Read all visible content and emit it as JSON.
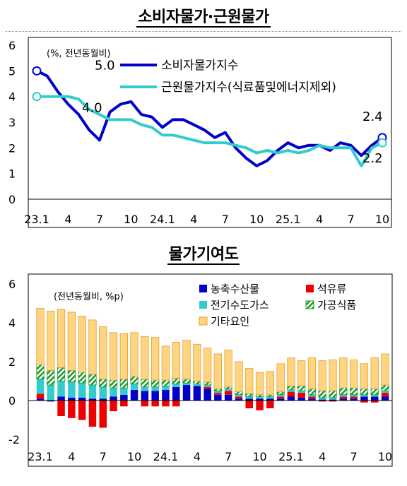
{
  "page": {
    "title1": "소비자물가·근원물가",
    "title2": "물가기여도"
  },
  "chart_data": [
    {
      "type": "line",
      "unit_note": "(%, 전년동월비)",
      "x_tick_labels": [
        "23.1",
        "4",
        "7",
        "10",
        "24.1",
        "4",
        "7",
        "10",
        "25.1",
        "4",
        "7",
        "10"
      ],
      "x": [
        "2023-01",
        "2023-02",
        "2023-03",
        "2023-04",
        "2023-05",
        "2023-06",
        "2023-07",
        "2023-08",
        "2023-09",
        "2023-10",
        "2023-11",
        "2023-12",
        "2024-01",
        "2024-02",
        "2024-03",
        "2024-04",
        "2024-05",
        "2024-06",
        "2024-07",
        "2024-08",
        "2024-09",
        "2024-10",
        "2024-11",
        "2024-12",
        "2025-01",
        "2025-02",
        "2025-03",
        "2025-04",
        "2025-05",
        "2025-06",
        "2025-07",
        "2025-08",
        "2025-09",
        "2025-10"
      ],
      "ylim": [
        0,
        6
      ],
      "y_ticks": [
        0,
        1,
        2,
        3,
        4,
        5,
        6
      ],
      "grid": false,
      "legend_position": "top-right",
      "series": [
        {
          "name": "소비자물가지수",
          "color": "#0000CC",
          "values": [
            5.0,
            4.8,
            4.2,
            3.7,
            3.3,
            2.7,
            2.3,
            3.4,
            3.7,
            3.8,
            3.3,
            3.2,
            2.8,
            3.1,
            3.1,
            2.9,
            2.7,
            2.4,
            2.6,
            2.0,
            1.6,
            1.3,
            1.5,
            1.9,
            2.2,
            2.0,
            2.1,
            2.1,
            1.9,
            2.2,
            2.1,
            1.7,
            2.1,
            2.4
          ]
        },
        {
          "name": "근원물가지수(식료품및에너지제외)",
          "color": "#33CCCC",
          "values": [
            4.0,
            4.0,
            4.0,
            4.0,
            3.9,
            3.5,
            3.3,
            3.1,
            3.1,
            3.1,
            2.9,
            2.8,
            2.5,
            2.5,
            2.4,
            2.3,
            2.2,
            2.2,
            2.2,
            2.1,
            2.0,
            1.8,
            1.9,
            1.8,
            1.9,
            1.8,
            1.9,
            2.1,
            2.0,
            2.0,
            2.0,
            1.3,
            2.0,
            2.2
          ]
        }
      ],
      "annotations": [
        {
          "text": "5.0",
          "series": 0,
          "index": 0
        },
        {
          "text": "4.0",
          "series": 1,
          "index": 0
        },
        {
          "text": "2.4",
          "series": 0,
          "index": 33
        },
        {
          "text": "2.2",
          "series": 1,
          "index": 33
        }
      ]
    },
    {
      "type": "bar",
      "stacked": true,
      "unit_note": "(전년동월비, %p)",
      "x_tick_labels": [
        "23.1",
        "4",
        "7",
        "10",
        "24.1",
        "4",
        "7",
        "10",
        "25.1",
        "4",
        "7",
        "10"
      ],
      "ylim": [
        -2,
        6
      ],
      "y_ticks": [
        -2,
        0,
        2,
        4,
        6
      ],
      "grid": false,
      "legend_position": "top-right",
      "series": [
        {
          "name": "농축수산물",
          "color": "#0000CC",
          "pattern": "solid",
          "values": [
            0.1,
            -0.05,
            0.2,
            0.15,
            0.15,
            0.1,
            0.1,
            0.2,
            0.3,
            0.55,
            0.5,
            0.5,
            0.55,
            0.7,
            0.8,
            0.75,
            0.6,
            0.3,
            0.3,
            0.1,
            0.1,
            0.1,
            0.1,
            0.1,
            0.2,
            0.15,
            0.1,
            0.05,
            0.05,
            0.1,
            0.1,
            0.2,
            0.2,
            0.2
          ]
        },
        {
          "name": "석유류",
          "color": "#EE0000",
          "pattern": "solid",
          "values": [
            0.25,
            0.0,
            -0.8,
            -0.9,
            -1.0,
            -1.35,
            -1.4,
            -0.55,
            -0.3,
            0.0,
            -0.3,
            -0.3,
            -0.3,
            -0.3,
            0.0,
            0.0,
            0.1,
            0.1,
            0.2,
            0.1,
            -0.4,
            -0.5,
            -0.4,
            0.1,
            0.25,
            0.25,
            0.1,
            -0.05,
            -0.05,
            0.1,
            0.1,
            -0.1,
            -0.1,
            0.2
          ]
        },
        {
          "name": "전기수도가스",
          "color": "#33CCCC",
          "pattern": "solid",
          "values": [
            0.75,
            0.8,
            0.8,
            0.8,
            0.75,
            0.7,
            0.6,
            0.45,
            0.35,
            0.3,
            0.2,
            0.2,
            0.2,
            0.15,
            0.1,
            0.1,
            0.1,
            0.1,
            0.1,
            0.1,
            0.1,
            0.1,
            0.1,
            0.1,
            0.1,
            0.1,
            0.1,
            0.1,
            0.1,
            0.1,
            0.1,
            0.1,
            0.1,
            0.1
          ]
        },
        {
          "name": "가공식품",
          "color": "#229933",
          "pattern": "hatch",
          "values": [
            0.75,
            0.75,
            0.7,
            0.6,
            0.55,
            0.55,
            0.4,
            0.4,
            0.45,
            0.4,
            0.4,
            0.35,
            0.3,
            0.3,
            0.2,
            0.15,
            0.15,
            0.1,
            0.1,
            0.15,
            0.15,
            0.1,
            0.1,
            0.15,
            0.2,
            0.25,
            0.3,
            0.35,
            0.35,
            0.35,
            0.35,
            0.3,
            0.3,
            0.3
          ]
        },
        {
          "name": "기타요인",
          "color": "#FFD480",
          "pattern": "solid",
          "values": [
            2.9,
            3.05,
            3.0,
            3.0,
            2.9,
            2.8,
            2.7,
            2.45,
            2.35,
            2.25,
            2.2,
            2.2,
            1.75,
            1.85,
            2.0,
            1.9,
            1.75,
            1.8,
            1.9,
            1.55,
            1.3,
            1.15,
            1.2,
            1.45,
            1.45,
            1.3,
            1.6,
            1.55,
            1.6,
            1.55,
            1.45,
            1.3,
            1.6,
            1.6
          ]
        }
      ]
    }
  ]
}
